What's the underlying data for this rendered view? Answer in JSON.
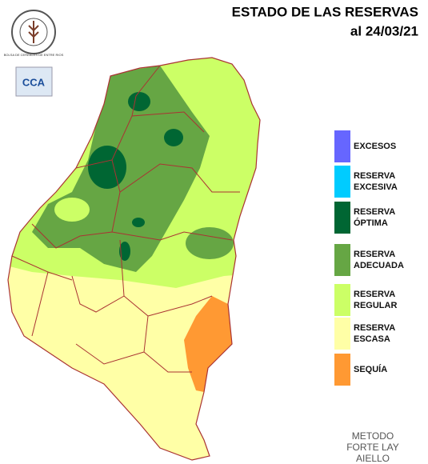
{
  "header": {
    "title": "ESTADO DE LAS RESERVAS",
    "date": "al 24/03/21"
  },
  "logo": {
    "text": "BOLSA DE CEREALES DE ENTRE RIOS",
    "badge": "CCA"
  },
  "legend": [
    {
      "lines": [
        "EXCESOS"
      ],
      "color": "#6666ff"
    },
    {
      "lines": [
        "RESERVA",
        "EXCESIVA"
      ],
      "color": "#00ccff"
    },
    {
      "lines": [
        "RESERVA",
        "ÓPTIMA"
      ],
      "color": "#006633"
    },
    {
      "lines": [
        "RESERVA",
        "ADECUADA"
      ],
      "color": "#66a644"
    },
    {
      "lines": [
        "RESERVA",
        "REGULAR"
      ],
      "color": "#ccff66"
    },
    {
      "lines": [
        "RESERVA",
        "ESCASA"
      ],
      "color": "#ffffa6"
    },
    {
      "lines": [
        "SEQUÍA"
      ],
      "color": "#ff9933"
    }
  ],
  "method": [
    "METODO",
    "FORTE LAY",
    "AIELLO"
  ]
}
